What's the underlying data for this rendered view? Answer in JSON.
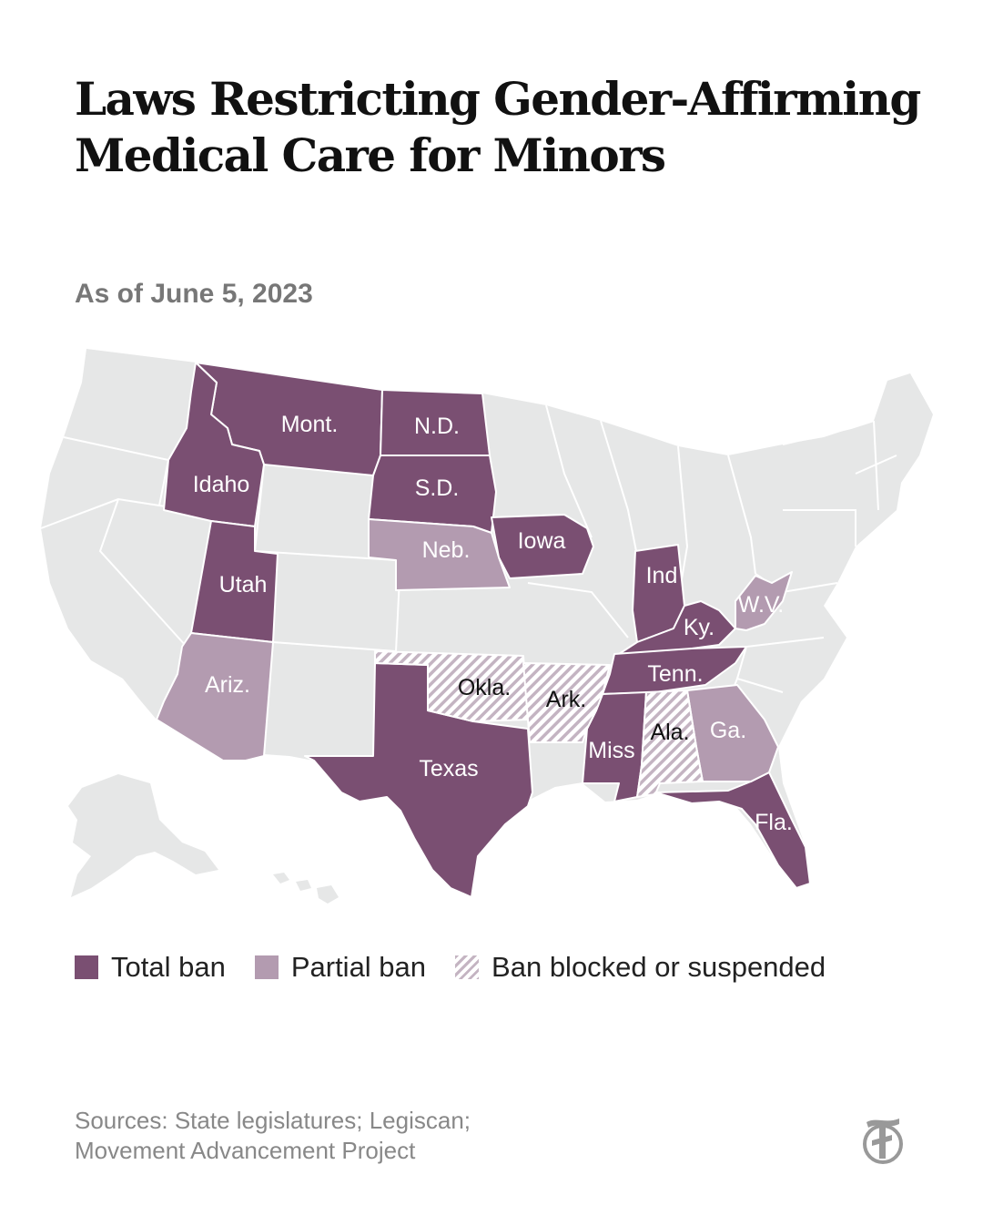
{
  "title": "Laws Restricting Gender-Affirming Medical Care for Minors",
  "subtitle": "As of June 5, 2023",
  "colors": {
    "total_ban": "#7a4f72",
    "partial_ban": "#b39bb0",
    "blocked_hatch": "#c4b4c2",
    "no_law": "#e6e7e7",
    "title": "#111111",
    "muted": "#888888"
  },
  "states": {
    "montana": {
      "label": "Mont.",
      "status": "total_ban"
    },
    "north_dakota": {
      "label": "N.D.",
      "status": "total_ban"
    },
    "south_dakota": {
      "label": "S.D.",
      "status": "total_ban"
    },
    "idaho": {
      "label": "Idaho",
      "status": "total_ban"
    },
    "utah": {
      "label": "Utah",
      "status": "total_ban"
    },
    "iowa": {
      "label": "Iowa",
      "status": "total_ban"
    },
    "nebraska": {
      "label": "Neb.",
      "status": "partial_ban"
    },
    "arizona": {
      "label": "Ariz.",
      "status": "partial_ban"
    },
    "oklahoma": {
      "label": "Okla.",
      "status": "blocked"
    },
    "arkansas": {
      "label": "Ark.",
      "status": "blocked"
    },
    "texas": {
      "label": "Texas",
      "status": "total_ban"
    },
    "indiana": {
      "label": "Ind",
      "status": "total_ban"
    },
    "kentucky": {
      "label": "Ky.",
      "status": "total_ban"
    },
    "west_virginia": {
      "label": "W.V.",
      "status": "partial_ban"
    },
    "tennessee": {
      "label": "Tenn.",
      "status": "total_ban"
    },
    "mississippi": {
      "label": "Miss",
      "status": "total_ban"
    },
    "alabama": {
      "label": "Ala.",
      "status": "blocked"
    },
    "georgia": {
      "label": "Ga.",
      "status": "partial_ban"
    },
    "florida": {
      "label": "Fla.",
      "status": "total_ban"
    }
  },
  "legend": [
    {
      "key": "total_ban",
      "label": "Total ban"
    },
    {
      "key": "partial_ban",
      "label": "Partial ban"
    },
    {
      "key": "blocked",
      "label": "Ban blocked or suspended"
    }
  ],
  "sources": {
    "line1": "Sources: State legislatures; Legiscan;",
    "line2": "Movement Advancement Project"
  },
  "logo": {
    "glyph": "T",
    "icon": "nyt-logo-icon"
  }
}
